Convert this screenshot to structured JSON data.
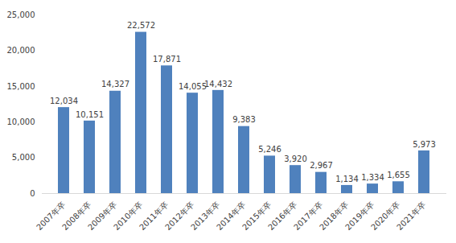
{
  "chart_data": {
    "type": "bar",
    "categories": [
      "2007年卒",
      "2008年卒",
      "2009年卒",
      "2010年卒",
      "2011年卒",
      "2012年卒",
      "2013年卒",
      "2014年卒",
      "2015年卒",
      "2016年卒",
      "2017年卒",
      "2018年卒",
      "2019年卒",
      "2020年卒",
      "2021年卒"
    ],
    "values": [
      12034,
      10151,
      14327,
      22572,
      17871,
      14055,
      14432,
      9383,
      5246,
      3920,
      2967,
      1134,
      1334,
      1655,
      5973
    ],
    "value_labels": [
      "12,034",
      "10,151",
      "14,327",
      "22,572",
      "17,871",
      "14,055",
      "14,432",
      "9,383",
      "5,246",
      "3,920",
      "2,967",
      "1,134",
      "1,334",
      "1,655",
      "5,973"
    ],
    "color": "#4f81bd",
    "ylim": [
      0,
      25000
    ],
    "yticks": [
      0,
      {
        "value": 5000,
        "label": "5,000"
      },
      {
        "value": 10000,
        "label": "10,000"
      },
      {
        "value": 15000,
        "label": "15,000"
      },
      {
        "value": 20000,
        "label": "20,000"
      },
      {
        "value": 25000,
        "label": "25,000"
      }
    ],
    "grid": false,
    "data_labels": true
  }
}
